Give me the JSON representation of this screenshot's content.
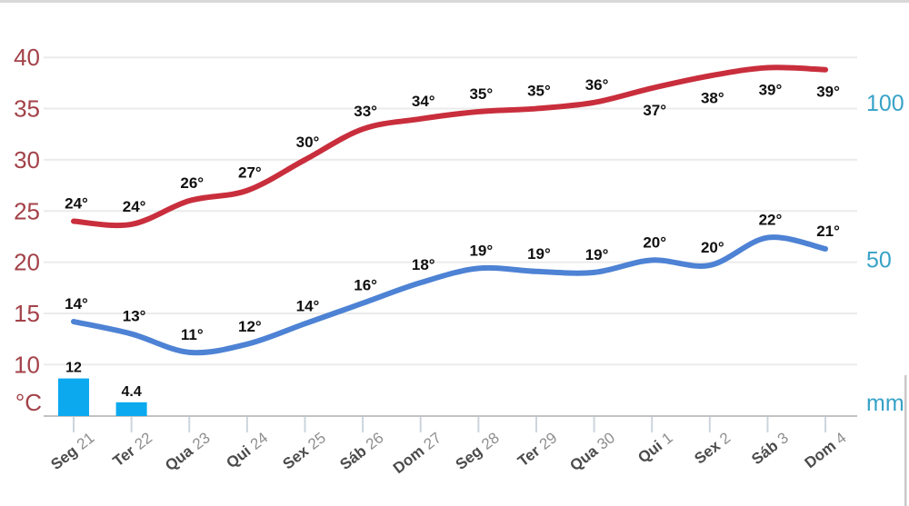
{
  "chart_data": {
    "type": "line",
    "description": "14-day weather forecast: max/min temperature lines with precipitation bars",
    "categories": [
      {
        "day": "Seg",
        "date": "21"
      },
      {
        "day": "Ter",
        "date": "22"
      },
      {
        "day": "Qua",
        "date": "23"
      },
      {
        "day": "Qui",
        "date": "24"
      },
      {
        "day": "Sex",
        "date": "25"
      },
      {
        "day": "Sáb",
        "date": "26"
      },
      {
        "day": "Dom",
        "date": "27"
      },
      {
        "day": "Seg",
        "date": "28"
      },
      {
        "day": "Ter",
        "date": "29"
      },
      {
        "day": "Qua",
        "date": "30"
      },
      {
        "day": "Qui",
        "date": "1"
      },
      {
        "day": "Sex",
        "date": "2"
      },
      {
        "day": "Sáb",
        "date": "3"
      },
      {
        "day": "Dom",
        "date": "4"
      }
    ],
    "series": [
      {
        "id": "max-temp",
        "type": "line",
        "color": "#c92e3c",
        "values": [
          24,
          23.7,
          26,
          27,
          30,
          33,
          34,
          34.7,
          35,
          35.6,
          37,
          38.2,
          39,
          38.8
        ],
        "labels": [
          "24°",
          "24°",
          "26°",
          "27°",
          "30°",
          "33°",
          "34°",
          "35°",
          "35°",
          "36°",
          "37°",
          "38°",
          "39°",
          "39°"
        ],
        "label_side": [
          "above",
          "above",
          "above",
          "above",
          "above",
          "above",
          "above",
          "above",
          "above",
          "above",
          "below",
          "below",
          "below",
          "below"
        ]
      },
      {
        "id": "min-temp",
        "type": "line",
        "color": "#4d82d4",
        "values": [
          14.2,
          13,
          11.2,
          12,
          14,
          16,
          18,
          19.4,
          19.1,
          19,
          20.2,
          19.7,
          22.4,
          21.3
        ],
        "labels": [
          "14°",
          "13°",
          "11°",
          "12°",
          "14°",
          "16°",
          "18°",
          "19°",
          "19°",
          "19°",
          "20°",
          "20°",
          "22°",
          "21°"
        ],
        "label_side": [
          "above",
          "above",
          "above",
          "above",
          "above",
          "above",
          "above",
          "above",
          "above",
          "above",
          "above",
          "above",
          "above",
          "above"
        ]
      },
      {
        "id": "precipitation",
        "type": "bar",
        "color": "#0ca9ef",
        "values": [
          12,
          4.4,
          0,
          0,
          0,
          0,
          0,
          0,
          0,
          0,
          0,
          0,
          0,
          0
        ],
        "labels": [
          "12",
          "4.4",
          "",
          "",
          "",
          "",
          "",
          "",
          "",
          "",
          "",
          "",
          "",
          ""
        ]
      }
    ],
    "left_axis": {
      "unit": "°C",
      "ticks": [
        40,
        35,
        30,
        25,
        20,
        15,
        10
      ],
      "color": "#a34249"
    },
    "right_axis": {
      "unit": "mm",
      "ticks": [
        100,
        50
      ],
      "color": "#37a2c7"
    },
    "grid": {
      "show": true,
      "color": "#ebebeb",
      "baseline_color": "#c3c3c3",
      "tick_color": "#ccd5dd"
    },
    "data_label_color": "#101010",
    "day_label": {
      "name_color": "#4b4b4b",
      "number_color": "#8e8e8e"
    },
    "frame": {
      "top_border_color": "#d8d8d8",
      "scrollbar_color": "#c9c9c9"
    }
  }
}
